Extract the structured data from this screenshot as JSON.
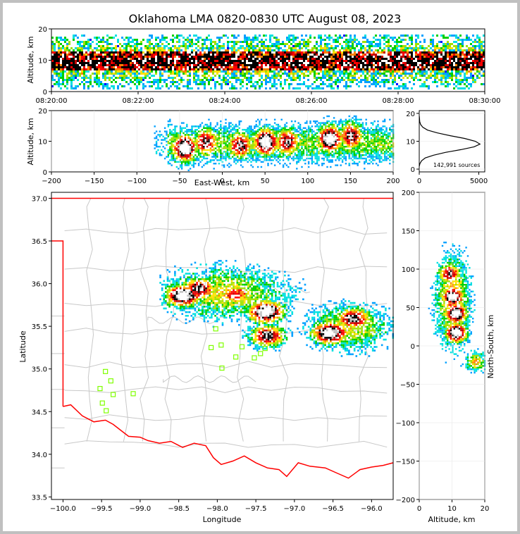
{
  "title": "Oklahoma LMA 0820-0830 UTC August 08, 2023",
  "chart_data": [
    {
      "id": "altitude-time",
      "type": "heatmap",
      "xlabel": "",
      "ylabel": "Altitude, km",
      "x_ticks": [
        "08:20:00",
        "08:22:00",
        "08:24:00",
        "08:26:00",
        "08:28:00",
        "08:30:00"
      ],
      "x_range": [
        "08:20:00",
        "08:30:00"
      ],
      "y_ticks": [
        0,
        10,
        20
      ],
      "ylim": [
        0,
        20
      ],
      "dense_band_altitude_km": [
        7,
        13
      ],
      "peak_altitude_km": 10
    },
    {
      "id": "east-west-altitude",
      "type": "heatmap",
      "xlabel": "East-West, km",
      "ylabel": "Altitude, km",
      "x_ticks": [
        -200,
        -150,
        -100,
        -50,
        0,
        50,
        100,
        150,
        200
      ],
      "xlim": [
        -200,
        200
      ],
      "y_ticks": [
        0,
        10,
        20
      ],
      "ylim": [
        0,
        20
      ],
      "cores": [
        {
          "x": -45,
          "alt": 8,
          "intensity": "high"
        },
        {
          "x": -20,
          "alt": 10,
          "intensity": "medium"
        },
        {
          "x": 20,
          "alt": 9,
          "intensity": "medium"
        },
        {
          "x": 50,
          "alt": 10,
          "intensity": "high"
        },
        {
          "x": 75,
          "alt": 10,
          "intensity": "medium"
        },
        {
          "x": 125,
          "alt": 11,
          "intensity": "high"
        },
        {
          "x": 150,
          "alt": 12,
          "intensity": "medium"
        }
      ]
    },
    {
      "id": "altitude-histogram",
      "type": "line",
      "annotation": "142,991 sources",
      "x_ticks": [
        0,
        5000
      ],
      "xlim": [
        0,
        5500
      ],
      "y_ticks": [
        0,
        10,
        20
      ],
      "ylim": [
        -1,
        21
      ],
      "x": [
        0,
        60,
        200,
        500,
        1200,
        2200,
        3500,
        4600,
        5100,
        4700,
        3800,
        2600,
        1500,
        700,
        300,
        120,
        40,
        5
      ],
      "y": [
        1,
        2,
        3,
        4,
        5,
        6,
        7,
        8,
        9,
        10,
        11,
        12,
        13,
        14,
        15,
        16,
        17,
        19
      ]
    },
    {
      "id": "plan-view",
      "type": "scatter",
      "xlabel": "Longitude",
      "ylabel": "Latitude",
      "x_ticks": [
        -100.0,
        -99.5,
        -99.0,
        -98.5,
        -98.0,
        -97.5,
        -97.0,
        -96.5,
        -96.0
      ],
      "xlim": [
        -100.15,
        -95.72
      ],
      "y_ticks": [
        33.5,
        34.0,
        34.5,
        35.0,
        35.5,
        36.0,
        36.5,
        37.0
      ],
      "ylim": [
        33.47,
        37.07
      ],
      "state_border_color": "#ff0000",
      "county_line_color": "#c8c8c8",
      "station_color": "#7fff00",
      "stations": [
        {
          "lon": -99.45,
          "lat": 34.97
        },
        {
          "lon": -99.38,
          "lat": 34.86
        },
        {
          "lon": -99.52,
          "lat": 34.77
        },
        {
          "lon": -99.35,
          "lat": 34.7
        },
        {
          "lon": -99.09,
          "lat": 34.71
        },
        {
          "lon": -99.49,
          "lat": 34.6
        },
        {
          "lon": -99.44,
          "lat": 34.51
        },
        {
          "lon": -98.02,
          "lat": 35.47
        },
        {
          "lon": -98.08,
          "lat": 35.25
        },
        {
          "lon": -97.95,
          "lat": 35.28
        },
        {
          "lon": -97.68,
          "lat": 35.26
        },
        {
          "lon": -97.38,
          "lat": 35.24
        },
        {
          "lon": -97.44,
          "lat": 35.18
        },
        {
          "lon": -97.76,
          "lat": 35.14
        },
        {
          "lon": -97.52,
          "lat": 35.13
        },
        {
          "lon": -97.94,
          "lat": 35.01
        }
      ],
      "cores": [
        {
          "lon": -98.45,
          "lat": 35.87,
          "intensity": "high"
        },
        {
          "lon": -98.25,
          "lat": 35.95,
          "intensity": "medium"
        },
        {
          "lon": -97.78,
          "lat": 35.88,
          "intensity": "low"
        },
        {
          "lon": -97.38,
          "lat": 35.68,
          "intensity": "high"
        },
        {
          "lon": -97.36,
          "lat": 35.4,
          "intensity": "medium"
        },
        {
          "lon": -96.55,
          "lat": 35.43,
          "intensity": "high"
        },
        {
          "lon": -96.25,
          "lat": 35.6,
          "intensity": "medium"
        }
      ]
    },
    {
      "id": "altitude-north-south",
      "type": "heatmap",
      "xlabel": "Altitude, km",
      "ylabel": "North-South, km",
      "x_ticks": [
        0,
        10,
        20
      ],
      "xlim": [
        0,
        20
      ],
      "y_ticks": [
        200,
        150,
        100,
        50,
        0,
        -50,
        -100,
        -150,
        -200
      ],
      "ylim": [
        -200,
        200
      ],
      "cores": [
        {
          "alt": 9,
          "y": 95,
          "intensity": "medium"
        },
        {
          "alt": 10,
          "y": 65,
          "intensity": "high"
        },
        {
          "alt": 11,
          "y": 43,
          "intensity": "high"
        },
        {
          "alt": 11,
          "y": 18,
          "intensity": "high"
        },
        {
          "alt": 17,
          "y": -20,
          "intensity": "low"
        }
      ]
    }
  ]
}
